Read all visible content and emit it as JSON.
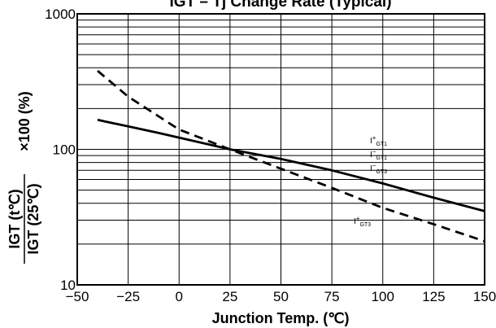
{
  "chart_data": {
    "type": "line",
    "title": "IGT – Tj Change Rate (Typical)",
    "xlabel": "Junction Temp. (℃)",
    "ylabel": "IGT (t℃) / IGT (25℃) ×100 (%)",
    "ylabel_parts": {
      "numerator": "IGT (t℃)",
      "denominator": "IGT (25℃)",
      "suffix": "×100 (%)"
    },
    "xlim": [
      -50,
      150
    ],
    "ylim": [
      10,
      1000
    ],
    "yscale": "log",
    "grid": true,
    "x_ticks": [
      "−50",
      "−25",
      "0",
      "25",
      "50",
      "75",
      "100",
      "125",
      "150"
    ],
    "y_ticks": [
      "10",
      "100",
      "1000"
    ],
    "series": [
      {
        "style": "solid",
        "x": [
          -40,
          -25,
          -10,
          0,
          25,
          50,
          75,
          100,
          125,
          150
        ],
        "y": [
          165,
          148,
          132,
          122,
          100,
          85,
          70,
          56,
          44,
          35
        ]
      },
      {
        "style": "dashed",
        "x": [
          -40,
          -25,
          -10,
          0,
          25,
          50,
          75,
          100,
          125,
          150
        ],
        "y": [
          380,
          245,
          175,
          140,
          100,
          72,
          52,
          37,
          28,
          21
        ]
      }
    ],
    "annotations": [
      {
        "base": "I",
        "sup": "+",
        "sub": "GT1"
      },
      {
        "base": "I",
        "sup": "−",
        "sub": "GT1"
      },
      {
        "base": "I",
        "sup": "−",
        "sub": "GT3"
      },
      {
        "base": "I",
        "sup": "+",
        "sub": "GT3"
      }
    ]
  }
}
